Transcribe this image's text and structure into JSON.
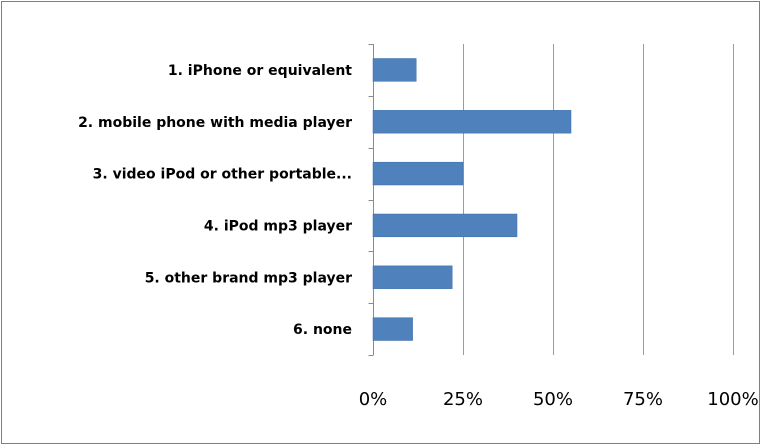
{
  "chart_data": {
    "type": "bar",
    "orientation": "horizontal",
    "title": "",
    "xlabel": "",
    "ylabel": "",
    "categories": [
      "1. iPhone or equivalent",
      "2. mobile phone with media player",
      "3. video iPod or other portable...",
      "4. iPod mp3  player",
      "5. other brand mp3 player",
      "6. none"
    ],
    "values": [
      12,
      55,
      25,
      40,
      22,
      11
    ],
    "value_unit": "%",
    "xlim": [
      0,
      100
    ],
    "xticks": [
      0,
      25,
      50,
      75,
      100
    ],
    "xtick_labels": [
      "0%",
      "25%",
      "50%",
      "75%",
      "100%"
    ],
    "grid": "vertical major gridlines",
    "legend": "none",
    "colors": {
      "bar": "#4f81bd",
      "bar_border": "#3c6aa8",
      "grid": "#9c9c9c",
      "axis": "#8c8c8c",
      "frame": "#7f7f7f"
    }
  }
}
